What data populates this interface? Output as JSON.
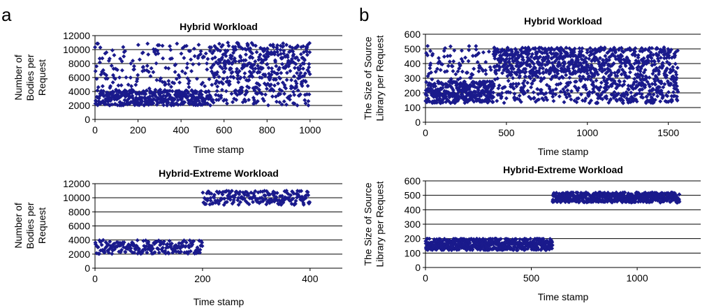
{
  "panels": [
    {
      "letter": "a"
    },
    {
      "letter": "b"
    }
  ],
  "chart_data": [
    {
      "type": "scatter",
      "title": "Hybrid Workload",
      "xlabel": "Time stamp",
      "ylabel": [
        "Number of",
        "Bodies per",
        "Request"
      ],
      "xlim": [
        0,
        1150
      ],
      "ylim": [
        0,
        12000
      ],
      "xticks": [
        0,
        200,
        400,
        600,
        800,
        1000
      ],
      "yticks": [
        0,
        2000,
        4000,
        6000,
        8000,
        10000,
        12000
      ],
      "grid": "horizontal",
      "legend": "none",
      "marker": "diamond",
      "color": "#1a1a8c",
      "generator": {
        "count": 1000,
        "segments": [
          {
            "x_start": 0,
            "x_end": 540,
            "clusters": [
              {
                "weight": 0.7,
                "y_range": [
                  2000,
                  4200
                ]
              },
              {
                "weight": 0.3,
                "y_range": [
                  4200,
                  11000
                ]
              }
            ]
          },
          {
            "x_start": 540,
            "x_end": 1000,
            "clusters": [
              {
                "weight": 0.55,
                "y_range": [
                  6500,
                  11000
                ]
              },
              {
                "weight": 0.45,
                "y_range": [
                  2000,
                  6500
                ]
              }
            ]
          }
        ]
      }
    },
    {
      "type": "scatter",
      "title": "Hybrid Workload",
      "xlabel": "Time stamp",
      "ylabel": [
        "The Size of Source",
        "Library per Request"
      ],
      "xlim": [
        0,
        1700
      ],
      "ylim": [
        0,
        600
      ],
      "xticks": [
        0,
        500,
        1000,
        1500
      ],
      "yticks": [
        0,
        100,
        200,
        300,
        400,
        500,
        600
      ],
      "grid": "horizontal",
      "legend": "none",
      "marker": "diamond",
      "color": "#1a1a8c",
      "generator": {
        "count": 1560,
        "segments": [
          {
            "x_start": 0,
            "x_end": 420,
            "clusters": [
              {
                "weight": 0.82,
                "y_range": [
                  130,
                  280
                ]
              },
              {
                "weight": 0.18,
                "y_range": [
                  280,
                  520
                ]
              }
            ]
          },
          {
            "x_start": 420,
            "x_end": 1000,
            "clusters": [
              {
                "weight": 0.7,
                "y_range": [
                  330,
                  510
                ]
              },
              {
                "weight": 0.3,
                "y_range": [
                  130,
                  330
                ]
              }
            ]
          },
          {
            "x_start": 1000,
            "x_end": 1560,
            "clusters": [
              {
                "weight": 0.5,
                "y_range": [
                  130,
                  330
                ]
              },
              {
                "weight": 0.5,
                "y_range": [
                  330,
                  510
                ]
              }
            ]
          }
        ]
      }
    },
    {
      "type": "scatter",
      "title": "Hybrid-Extreme Workload",
      "xlabel": "Time stamp",
      "ylabel": [
        "Number of",
        "Bodies per",
        "Request"
      ],
      "xlim": [
        0,
        460
      ],
      "ylim": [
        0,
        12000
      ],
      "xticks": [
        0,
        200,
        400
      ],
      "yticks": [
        0,
        2000,
        4000,
        6000,
        8000,
        10000,
        12000
      ],
      "grid": "horizontal",
      "legend": "none",
      "marker": "diamond",
      "color": "#1a1a8c",
      "generator": {
        "count": 400,
        "segments": [
          {
            "x_start": 0,
            "x_end": 200,
            "clusters": [
              {
                "weight": 1,
                "y_range": [
                  2000,
                  4000
                ]
              }
            ]
          },
          {
            "x_start": 200,
            "x_end": 400,
            "clusters": [
              {
                "weight": 1,
                "y_range": [
                  9000,
                  11000
                ]
              }
            ]
          }
        ]
      }
    },
    {
      "type": "scatter",
      "title": "Hybrid-Extreme Workload",
      "xlabel": "Time stamp",
      "ylabel": [
        "The Size of Source",
        "Library per Request"
      ],
      "xlim": [
        0,
        1300
      ],
      "ylim": [
        0,
        600
      ],
      "xticks": [
        0,
        500,
        1000
      ],
      "yticks": [
        0,
        100,
        200,
        300,
        400,
        500,
        600
      ],
      "grid": "horizontal",
      "legend": "none",
      "marker": "diamond",
      "color": "#1a1a8c",
      "generator": {
        "count": 1200,
        "segments": [
          {
            "x_start": 0,
            "x_end": 600,
            "clusters": [
              {
                "weight": 1,
                "y_range": [
                  120,
                  200
                ]
              }
            ]
          },
          {
            "x_start": 600,
            "x_end": 1200,
            "clusters": [
              {
                "weight": 1,
                "y_range": [
                  450,
                  520
                ]
              }
            ]
          }
        ]
      }
    }
  ]
}
